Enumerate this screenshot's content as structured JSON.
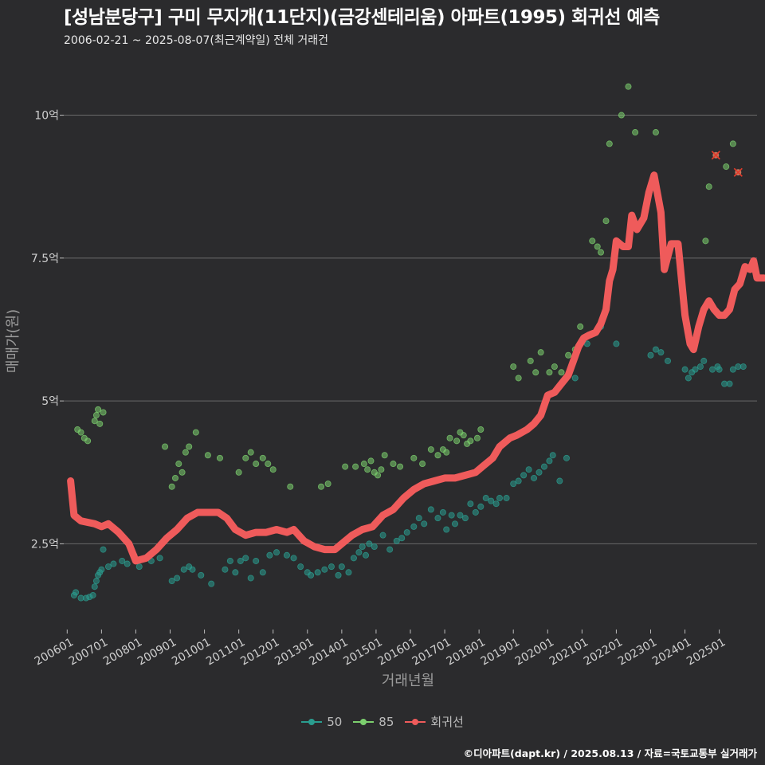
{
  "header": {
    "title": "[성남분당구] 구미 무지개(11단지)(금강센테리움) 아파트(1995) 회귀선 예측",
    "subtitle": "2006-02-21 ~ 2025-08-07(최근계약일) 전체 거래건"
  },
  "footer": {
    "credit": "©디아파트(dapt.kr) / 2025.08.13 / 자료=국토교통부 실거래가"
  },
  "colors": {
    "background": "#2b2b2d",
    "series_50": "#2a9d8f",
    "series_85": "#7ccf6e",
    "regression": "#ef5b5b",
    "grid": "#6a6a6a"
  },
  "chart_data": {
    "type": "scatter",
    "xlabel": "거래년월",
    "ylabel": "매매가(원)",
    "ylim": [
      1.0,
      10.9
    ],
    "xlim": [
      2005.9,
      2026.1
    ],
    "y_ticks": [
      {
        "value": 2.5,
        "label": "2.5억"
      },
      {
        "value": 5,
        "label": "5억"
      },
      {
        "value": 7.5,
        "label": "7.5억"
      },
      {
        "value": 10,
        "label": "10억"
      }
    ],
    "x_ticks": [
      "200601",
      "200701",
      "200801",
      "200901",
      "201001",
      "201101",
      "201201",
      "201301",
      "201401",
      "201501",
      "201601",
      "201701",
      "201801",
      "201901",
      "202001",
      "202101",
      "202201",
      "202301",
      "202401",
      "202501"
    ],
    "grid": "horizontal",
    "legend_position": "bottom",
    "series": [
      {
        "name": "50",
        "points": [
          [
            2006.2,
            1.6
          ],
          [
            2006.25,
            1.65
          ],
          [
            2006.4,
            1.55
          ],
          [
            2006.55,
            1.55
          ],
          [
            2006.65,
            1.57
          ],
          [
            2006.75,
            1.6
          ],
          [
            2006.8,
            1.75
          ],
          [
            2006.85,
            1.85
          ],
          [
            2006.9,
            1.95
          ],
          [
            2006.95,
            2.0
          ],
          [
            2007.0,
            2.05
          ],
          [
            2007.05,
            2.4
          ],
          [
            2007.2,
            2.1
          ],
          [
            2007.35,
            2.15
          ],
          [
            2007.6,
            2.2
          ],
          [
            2007.75,
            2.15
          ],
          [
            2007.95,
            2.3
          ],
          [
            2008.1,
            2.1
          ],
          [
            2008.25,
            2.25
          ],
          [
            2008.45,
            2.2
          ],
          [
            2008.7,
            2.25
          ],
          [
            2009.05,
            1.85
          ],
          [
            2009.2,
            1.9
          ],
          [
            2009.4,
            2.05
          ],
          [
            2009.55,
            2.1
          ],
          [
            2009.65,
            2.05
          ],
          [
            2009.9,
            1.95
          ],
          [
            2010.2,
            1.8
          ],
          [
            2010.6,
            2.05
          ],
          [
            2010.75,
            2.2
          ],
          [
            2010.9,
            2.0
          ],
          [
            2011.05,
            2.2
          ],
          [
            2011.2,
            2.25
          ],
          [
            2011.35,
            1.9
          ],
          [
            2011.5,
            2.2
          ],
          [
            2011.7,
            2.0
          ],
          [
            2011.9,
            2.3
          ],
          [
            2012.1,
            2.35
          ],
          [
            2012.4,
            2.3
          ],
          [
            2012.6,
            2.25
          ],
          [
            2012.8,
            2.1
          ],
          [
            2013.0,
            2.0
          ],
          [
            2013.1,
            1.95
          ],
          [
            2013.3,
            2.0
          ],
          [
            2013.5,
            2.05
          ],
          [
            2013.7,
            2.1
          ],
          [
            2013.9,
            1.95
          ],
          [
            2014.0,
            2.1
          ],
          [
            2014.2,
            2.0
          ],
          [
            2014.35,
            2.25
          ],
          [
            2014.5,
            2.35
          ],
          [
            2014.6,
            2.45
          ],
          [
            2014.7,
            2.3
          ],
          [
            2014.8,
            2.5
          ],
          [
            2014.95,
            2.45
          ],
          [
            2015.2,
            2.65
          ],
          [
            2015.4,
            2.4
          ],
          [
            2015.6,
            2.55
          ],
          [
            2015.75,
            2.6
          ],
          [
            2015.9,
            2.7
          ],
          [
            2016.1,
            2.8
          ],
          [
            2016.25,
            2.95
          ],
          [
            2016.4,
            2.85
          ],
          [
            2016.6,
            3.1
          ],
          [
            2016.8,
            2.95
          ],
          [
            2016.95,
            3.05
          ],
          [
            2017.05,
            2.75
          ],
          [
            2017.2,
            3.0
          ],
          [
            2017.3,
            2.85
          ],
          [
            2017.45,
            3.0
          ],
          [
            2017.6,
            2.95
          ],
          [
            2017.75,
            3.2
          ],
          [
            2017.9,
            3.05
          ],
          [
            2018.05,
            3.15
          ],
          [
            2018.2,
            3.3
          ],
          [
            2018.35,
            3.25
          ],
          [
            2018.5,
            3.2
          ],
          [
            2018.6,
            3.3
          ],
          [
            2018.8,
            3.3
          ],
          [
            2019.0,
            3.55
          ],
          [
            2019.15,
            3.6
          ],
          [
            2019.3,
            3.7
          ],
          [
            2019.45,
            3.8
          ],
          [
            2019.6,
            3.65
          ],
          [
            2019.75,
            3.75
          ],
          [
            2019.9,
            3.85
          ],
          [
            2020.05,
            3.95
          ],
          [
            2020.15,
            4.05
          ],
          [
            2020.35,
            3.6
          ],
          [
            2020.55,
            4.0
          ],
          [
            2020.8,
            5.4
          ],
          [
            2021.15,
            6.0
          ],
          [
            2021.55,
            6.3
          ],
          [
            2022.0,
            6.0
          ],
          [
            2023.0,
            5.8
          ],
          [
            2023.15,
            5.9
          ],
          [
            2023.3,
            5.85
          ],
          [
            2023.5,
            5.7
          ],
          [
            2024.0,
            5.55
          ],
          [
            2024.1,
            5.4
          ],
          [
            2024.2,
            5.5
          ],
          [
            2024.3,
            5.55
          ],
          [
            2024.45,
            5.6
          ],
          [
            2024.55,
            5.7
          ],
          [
            2024.8,
            5.55
          ],
          [
            2024.95,
            5.6
          ],
          [
            2025.0,
            5.55
          ],
          [
            2025.15,
            5.3
          ],
          [
            2025.3,
            5.3
          ],
          [
            2025.4,
            5.55
          ],
          [
            2025.55,
            5.6
          ],
          [
            2025.7,
            5.6
          ]
        ]
      },
      {
        "name": "85",
        "points": [
          [
            2006.3,
            4.5
          ],
          [
            2006.4,
            4.45
          ],
          [
            2006.5,
            4.35
          ],
          [
            2006.6,
            4.3
          ],
          [
            2006.8,
            4.65
          ],
          [
            2006.85,
            4.75
          ],
          [
            2006.9,
            4.85
          ],
          [
            2006.95,
            4.6
          ],
          [
            2007.05,
            4.8
          ],
          [
            2008.85,
            4.2
          ],
          [
            2009.05,
            3.5
          ],
          [
            2009.15,
            3.65
          ],
          [
            2009.25,
            3.9
          ],
          [
            2009.35,
            3.75
          ],
          [
            2009.45,
            4.1
          ],
          [
            2009.55,
            4.2
          ],
          [
            2009.75,
            4.45
          ],
          [
            2010.1,
            4.05
          ],
          [
            2010.45,
            4.0
          ],
          [
            2011.0,
            3.75
          ],
          [
            2011.2,
            4.0
          ],
          [
            2011.35,
            4.1
          ],
          [
            2011.5,
            3.9
          ],
          [
            2011.7,
            4.0
          ],
          [
            2011.85,
            3.9
          ],
          [
            2012.0,
            3.8
          ],
          [
            2012.5,
            3.5
          ],
          [
            2013.4,
            3.5
          ],
          [
            2013.6,
            3.55
          ],
          [
            2014.1,
            3.85
          ],
          [
            2014.4,
            3.85
          ],
          [
            2014.65,
            3.9
          ],
          [
            2014.75,
            3.8
          ],
          [
            2014.85,
            3.95
          ],
          [
            2014.95,
            3.75
          ],
          [
            2015.05,
            3.7
          ],
          [
            2015.15,
            3.8
          ],
          [
            2015.25,
            4.05
          ],
          [
            2015.5,
            3.9
          ],
          [
            2015.7,
            3.85
          ],
          [
            2016.1,
            4.0
          ],
          [
            2016.35,
            3.9
          ],
          [
            2016.6,
            4.15
          ],
          [
            2016.8,
            4.05
          ],
          [
            2016.95,
            4.15
          ],
          [
            2017.05,
            4.1
          ],
          [
            2017.15,
            4.35
          ],
          [
            2017.35,
            4.3
          ],
          [
            2017.45,
            4.45
          ],
          [
            2017.55,
            4.4
          ],
          [
            2017.65,
            4.25
          ],
          [
            2017.75,
            4.3
          ],
          [
            2017.95,
            4.35
          ],
          [
            2018.05,
            4.5
          ],
          [
            2019.0,
            5.6
          ],
          [
            2019.15,
            5.4
          ],
          [
            2019.5,
            5.7
          ],
          [
            2019.65,
            5.5
          ],
          [
            2019.8,
            5.85
          ],
          [
            2020.05,
            5.5
          ],
          [
            2020.2,
            5.6
          ],
          [
            2020.4,
            5.5
          ],
          [
            2020.6,
            5.8
          ],
          [
            2020.8,
            5.9
          ],
          [
            2020.95,
            6.3
          ],
          [
            2021.3,
            7.8
          ],
          [
            2021.45,
            7.7
          ],
          [
            2021.55,
            7.6
          ],
          [
            2021.7,
            8.15
          ],
          [
            2021.8,
            9.5
          ],
          [
            2022.15,
            10.0
          ],
          [
            2022.35,
            10.5
          ],
          [
            2022.55,
            9.7
          ],
          [
            2023.15,
            9.7
          ],
          [
            2024.6,
            7.8
          ],
          [
            2024.7,
            8.75
          ],
          [
            2025.2,
            9.1
          ],
          [
            2025.4,
            9.5
          ]
        ]
      },
      {
        "name": "cancelled",
        "points": [
          [
            2024.9,
            9.3
          ],
          [
            2025.55,
            9.0
          ]
        ]
      },
      {
        "name": "회귀선",
        "points": [
          [
            2006.1,
            3.6
          ],
          [
            2006.2,
            3.0
          ],
          [
            2006.4,
            2.9
          ],
          [
            2006.8,
            2.85
          ],
          [
            2007.0,
            2.8
          ],
          [
            2007.2,
            2.85
          ],
          [
            2007.5,
            2.7
          ],
          [
            2007.8,
            2.5
          ],
          [
            2008.0,
            2.2
          ],
          [
            2008.3,
            2.25
          ],
          [
            2008.6,
            2.4
          ],
          [
            2008.9,
            2.6
          ],
          [
            2009.2,
            2.75
          ],
          [
            2009.5,
            2.95
          ],
          [
            2009.8,
            3.05
          ],
          [
            2010.1,
            3.05
          ],
          [
            2010.4,
            3.05
          ],
          [
            2010.65,
            2.95
          ],
          [
            2010.9,
            2.75
          ],
          [
            2011.2,
            2.65
          ],
          [
            2011.5,
            2.7
          ],
          [
            2011.8,
            2.7
          ],
          [
            2012.1,
            2.75
          ],
          [
            2012.4,
            2.7
          ],
          [
            2012.6,
            2.75
          ],
          [
            2012.9,
            2.55
          ],
          [
            2013.2,
            2.45
          ],
          [
            2013.5,
            2.4
          ],
          [
            2013.8,
            2.4
          ],
          [
            2014.0,
            2.5
          ],
          [
            2014.3,
            2.65
          ],
          [
            2014.6,
            2.75
          ],
          [
            2014.9,
            2.8
          ],
          [
            2015.2,
            3.0
          ],
          [
            2015.5,
            3.1
          ],
          [
            2015.8,
            3.3
          ],
          [
            2016.1,
            3.45
          ],
          [
            2016.4,
            3.55
          ],
          [
            2016.7,
            3.6
          ],
          [
            2017.0,
            3.65
          ],
          [
            2017.3,
            3.65
          ],
          [
            2017.6,
            3.7
          ],
          [
            2017.9,
            3.75
          ],
          [
            2018.1,
            3.85
          ],
          [
            2018.4,
            4.0
          ],
          [
            2018.6,
            4.2
          ],
          [
            2018.9,
            4.35
          ],
          [
            2019.1,
            4.4
          ],
          [
            2019.4,
            4.5
          ],
          [
            2019.6,
            4.6
          ],
          [
            2019.8,
            4.75
          ],
          [
            2020.0,
            5.1
          ],
          [
            2020.2,
            5.15
          ],
          [
            2020.4,
            5.3
          ],
          [
            2020.6,
            5.45
          ],
          [
            2020.75,
            5.7
          ],
          [
            2020.9,
            5.95
          ],
          [
            2021.05,
            6.1
          ],
          [
            2021.2,
            6.15
          ],
          [
            2021.4,
            6.2
          ],
          [
            2021.55,
            6.35
          ],
          [
            2021.7,
            6.6
          ],
          [
            2021.8,
            7.1
          ],
          [
            2021.9,
            7.3
          ],
          [
            2022.0,
            7.8
          ],
          [
            2022.2,
            7.7
          ],
          [
            2022.35,
            7.7
          ],
          [
            2022.45,
            8.25
          ],
          [
            2022.6,
            8.0
          ],
          [
            2022.8,
            8.2
          ],
          [
            2022.95,
            8.65
          ],
          [
            2023.1,
            8.95
          ],
          [
            2023.3,
            8.3
          ],
          [
            2023.4,
            7.3
          ],
          [
            2023.6,
            7.75
          ],
          [
            2023.8,
            7.75
          ],
          [
            2024.0,
            6.5
          ],
          [
            2024.15,
            6.0
          ],
          [
            2024.25,
            5.9
          ],
          [
            2024.4,
            6.3
          ],
          [
            2024.55,
            6.6
          ],
          [
            2024.7,
            6.75
          ],
          [
            2024.85,
            6.6
          ],
          [
            2025.0,
            6.5
          ],
          [
            2025.15,
            6.5
          ],
          [
            2025.3,
            6.6
          ],
          [
            2025.45,
            6.95
          ],
          [
            2025.6,
            7.05
          ],
          [
            2025.75,
            7.35
          ],
          [
            2025.9,
            7.3
          ],
          [
            2026.0,
            7.45
          ],
          [
            2026.1,
            7.15
          ],
          [
            2026.3,
            7.15
          ]
        ]
      }
    ]
  }
}
